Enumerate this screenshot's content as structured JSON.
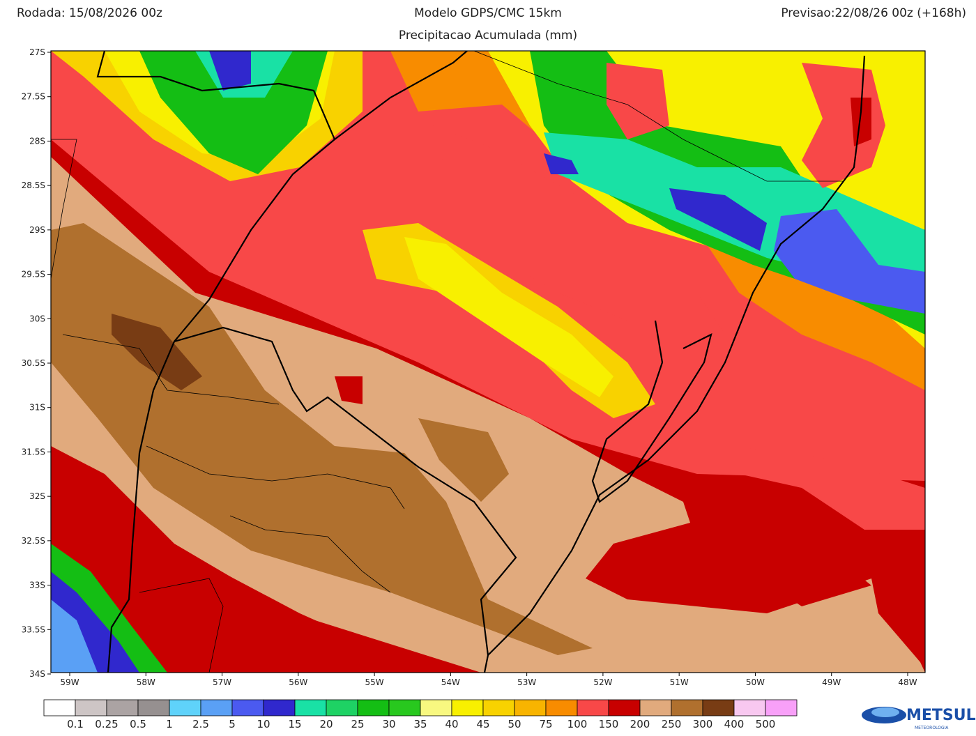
{
  "header": {
    "left": "Rodada: 15/08/2026 00z",
    "title": "Modelo GDPS/CMC 15km",
    "subtitle": "Precipitacao Acumulada (mm)",
    "right": "Previsao:22/08/26 00z (+168h)"
  },
  "lat_labels": [
    "27S",
    "27.5S",
    "28S",
    "28.5S",
    "29S",
    "29.5S",
    "30S",
    "30.5S",
    "31S",
    "31.5S",
    "32S",
    "32.5S",
    "33S",
    "33.5S",
    "34S"
  ],
  "lon_labels": [
    "59W",
    "58W",
    "57W",
    "56W",
    "55W",
    "54W",
    "53W",
    "52W",
    "51W",
    "50W",
    "49W",
    "48W"
  ],
  "colorbar": {
    "colors": [
      "#ffffff",
      "#cdc5c5",
      "#aba3a3",
      "#969090",
      "#5fd2fa",
      "#5aa0f5",
      "#4b5af0",
      "#3028cd",
      "#19e1a5",
      "#1ed264",
      "#14be14",
      "#28c81e",
      "#f8f880",
      "#f8f000",
      "#f8d200",
      "#f8b400",
      "#f88c00",
      "#f84848",
      "#c80000",
      "#e1aa7d",
      "#b0702e",
      "#783c14",
      "#f8c8f0",
      "#f8a0f8",
      "#e84ae8",
      "#a0108c"
    ],
    "labels": [
      "0.1",
      "0.25",
      "0.5",
      "1",
      "2.5",
      "5",
      "10",
      "15",
      "20",
      "25",
      "30",
      "35",
      "40",
      "45",
      "50",
      "75",
      "100",
      "150",
      "200",
      "250",
      "300",
      "400",
      "500"
    ]
  },
  "logo": {
    "name": "METSUL",
    "tagline": "METEOROLOGIA"
  }
}
